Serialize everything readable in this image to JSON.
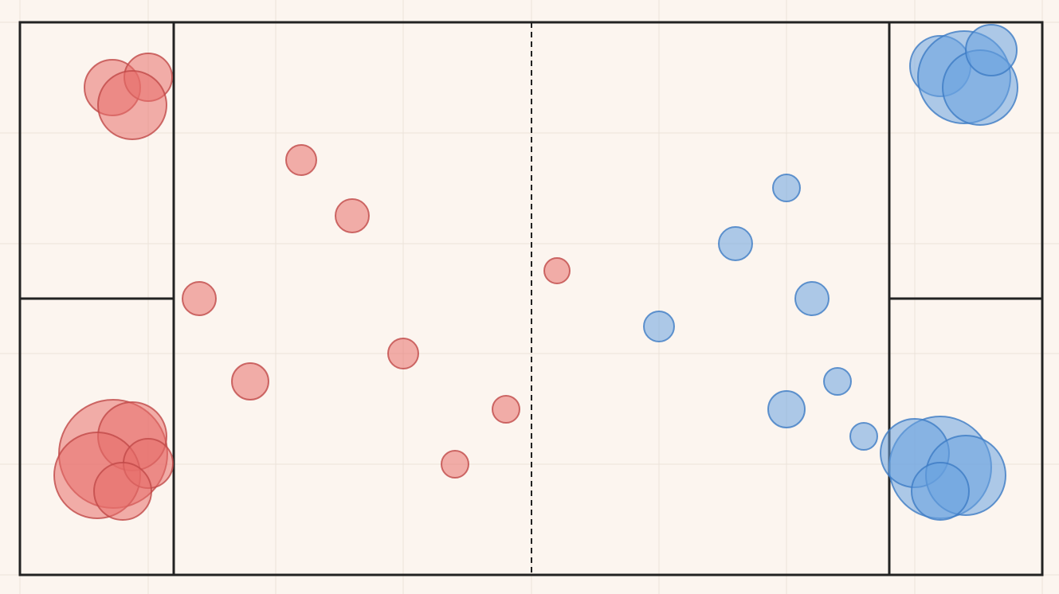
{
  "board": {
    "background_color": "#fcf5ef",
    "grid_color": "#ebe2da",
    "line_color": "#222222",
    "center_line_style": "dashed"
  },
  "teams": [
    {
      "side": "left",
      "fill": "#e8706c",
      "stroke": "#c04a48"
    },
    {
      "side": "right",
      "fill": "#6aa3e0",
      "stroke": "#3d7cc4"
    }
  ]
}
